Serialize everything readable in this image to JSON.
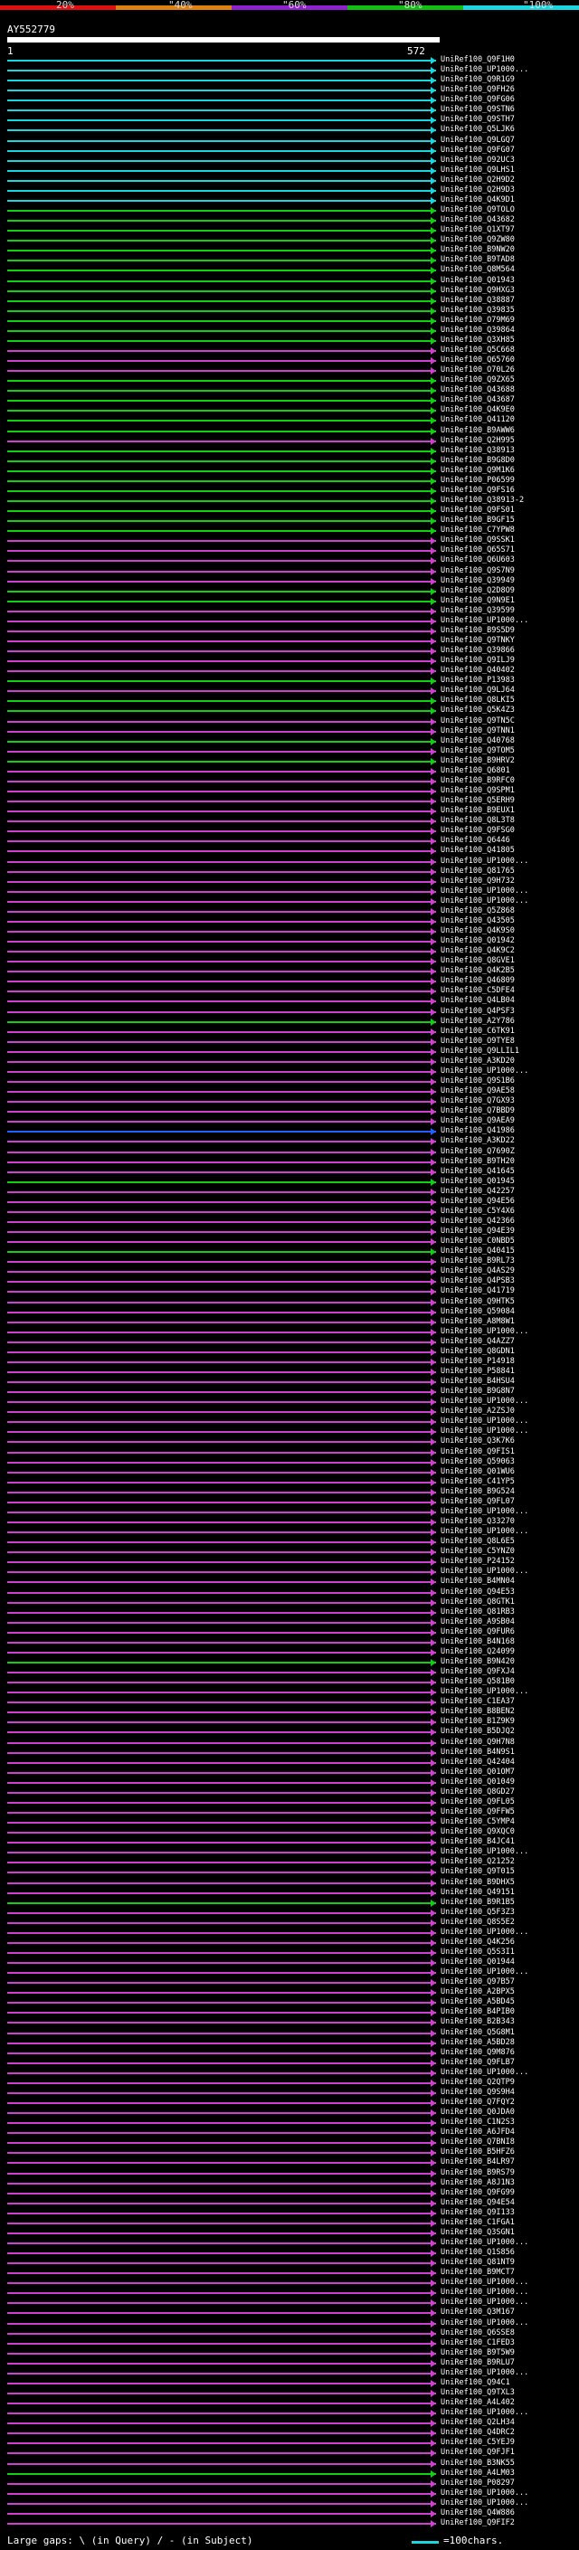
{
  "scale": {
    "ticks": [
      "20%",
      "\"40%",
      "\"60%",
      "\"80%",
      "\"100%"
    ],
    "colors": [
      "#e01010",
      "#e08010",
      "#9020d0",
      "#10c010",
      "#19d6e0"
    ]
  },
  "query": {
    "name": "AY552779",
    "start": "1",
    "end": "572"
  },
  "hit_colors": {
    "cyan": "#19d6e0",
    "green": "#10d010",
    "magenta": "#d040d0",
    "blue": "#2060ff"
  },
  "hits": [
    {
      "label": "UniRef100_Q9F1H0",
      "c": "cyan"
    },
    {
      "label": "UniRef100_UP1000...",
      "c": "cyan"
    },
    {
      "label": "UniRef100_Q9R1G9",
      "c": "cyan"
    },
    {
      "label": "UniRef100_Q9FH26",
      "c": "cyan"
    },
    {
      "label": "UniRef100_Q9FG06",
      "c": "cyan"
    },
    {
      "label": "UniRef100_Q9STN6",
      "c": "cyan"
    },
    {
      "label": "UniRef100_Q9STH7",
      "c": "cyan"
    },
    {
      "label": "UniRef100_Q5LJK6",
      "c": "cyan"
    },
    {
      "label": "UniRef100_Q9LGQ7",
      "c": "cyan"
    },
    {
      "label": "UniRef100_Q9FG07",
      "c": "cyan"
    },
    {
      "label": "UniRef100_O92UC3",
      "c": "cyan"
    },
    {
      "label": "UniRef100_Q9LHS1",
      "c": "cyan"
    },
    {
      "label": "UniRef100_Q2H9D2",
      "c": "cyan"
    },
    {
      "label": "UniRef100_Q2H9D3",
      "c": "cyan"
    },
    {
      "label": "UniRef100_Q4K9D1",
      "c": "cyan"
    },
    {
      "label": "UniRef100_Q9TOLO",
      "c": "green"
    },
    {
      "label": "UniRef100_Q43682",
      "c": "green"
    },
    {
      "label": "UniRef100_Q1XT97",
      "c": "green"
    },
    {
      "label": "UniRef100_Q9ZW80",
      "c": "green"
    },
    {
      "label": "UniRef100_B9NW20",
      "c": "green"
    },
    {
      "label": "UniRef100_B9TAD8",
      "c": "green"
    },
    {
      "label": "UniRef100_Q8M564",
      "c": "green"
    },
    {
      "label": "UniRef100_Q01943",
      "c": "green"
    },
    {
      "label": "UniRef100_Q9HXG3",
      "c": "green"
    },
    {
      "label": "UniRef100_Q38887",
      "c": "green"
    },
    {
      "label": "UniRef100_Q39835",
      "c": "green"
    },
    {
      "label": "UniRef100_O79M69",
      "c": "green"
    },
    {
      "label": "UniRef100_Q39864",
      "c": "green"
    },
    {
      "label": "UniRef100_Q3XH85",
      "c": "green"
    },
    {
      "label": "UniRef100_Q5C668",
      "c": "magenta"
    },
    {
      "label": "UniRef100_Q65760",
      "c": "magenta"
    },
    {
      "label": "UniRef100_O70L26",
      "c": "magenta"
    },
    {
      "label": "UniRef100_Q9ZX65",
      "c": "green"
    },
    {
      "label": "UniRef100_Q43688",
      "c": "green"
    },
    {
      "label": "UniRef100_Q43687",
      "c": "green"
    },
    {
      "label": "UniRef100_Q4K9E0",
      "c": "green"
    },
    {
      "label": "UniRef100_Q41120",
      "c": "green"
    },
    {
      "label": "UniRef100_B9AWW6",
      "c": "green"
    },
    {
      "label": "UniRef100_Q2H995",
      "c": "magenta"
    },
    {
      "label": "UniRef100_Q38913",
      "c": "green"
    },
    {
      "label": "UniRef100_B9G8D0",
      "c": "green"
    },
    {
      "label": "UniRef100_Q9M1K6",
      "c": "green"
    },
    {
      "label": "UniRef100_P06599",
      "c": "green"
    },
    {
      "label": "UniRef100_Q9FS16",
      "c": "green"
    },
    {
      "label": "UniRef100_Q38913-2",
      "c": "green"
    },
    {
      "label": "UniRef100_Q9FS01",
      "c": "green"
    },
    {
      "label": "UniRef100_B9GF15",
      "c": "green"
    },
    {
      "label": "UniRef100_C7YPW8",
      "c": "green"
    },
    {
      "label": "UniRef100_Q9SSK1",
      "c": "magenta"
    },
    {
      "label": "UniRef100_Q65S71",
      "c": "magenta"
    },
    {
      "label": "UniRef100_Q6U603",
      "c": "magenta"
    },
    {
      "label": "UniRef100_Q9S7N9",
      "c": "magenta"
    },
    {
      "label": "UniRef100_Q39949",
      "c": "magenta"
    },
    {
      "label": "UniRef100_Q2D8O9",
      "c": "green"
    },
    {
      "label": "UniRef100_Q9N9E1",
      "c": "green"
    },
    {
      "label": "UniRef100_Q39599",
      "c": "magenta"
    },
    {
      "label": "UniRef100_UP1000...",
      "c": "magenta"
    },
    {
      "label": "UniRef100_B9S5D9",
      "c": "magenta"
    },
    {
      "label": "UniRef100_Q9TNKY",
      "c": "magenta"
    },
    {
      "label": "UniRef100_Q39866",
      "c": "magenta"
    },
    {
      "label": "UniRef100_Q9ILJ9",
      "c": "magenta"
    },
    {
      "label": "UniRef100_Q40402",
      "c": "magenta"
    },
    {
      "label": "UniRef100_P13983",
      "c": "green"
    },
    {
      "label": "UniRef100_Q9LJ64",
      "c": "magenta"
    },
    {
      "label": "UniRef100_Q8LKI5",
      "c": "green"
    },
    {
      "label": "UniRef100_Q5K4Z3",
      "c": "green"
    },
    {
      "label": "UniRef100_Q9TN5C",
      "c": "magenta"
    },
    {
      "label": "UniRef100_Q9TNN1",
      "c": "magenta"
    },
    {
      "label": "UniRef100_Q40768",
      "c": "green"
    },
    {
      "label": "UniRef100_Q9TOM5",
      "c": "magenta"
    },
    {
      "label": "UniRef100_B9HRV2",
      "c": "green"
    },
    {
      "label": "UniRef100_Q6801",
      "c": "magenta"
    },
    {
      "label": "UniRef100_B9RFC0",
      "c": "magenta"
    },
    {
      "label": "UniRef100_Q9SPM1",
      "c": "magenta"
    },
    {
      "label": "UniRef100_Q5ERH9",
      "c": "magenta"
    },
    {
      "label": "UniRef100_B9EUX1",
      "c": "magenta"
    },
    {
      "label": "UniRef100_Q8L3T8",
      "c": "magenta"
    },
    {
      "label": "UniRef100_Q9FSG0",
      "c": "magenta"
    },
    {
      "label": "UniRef100_Q6446",
      "c": "magenta"
    },
    {
      "label": "UniRef100_Q41805",
      "c": "magenta"
    },
    {
      "label": "UniRef100_UP1000...",
      "c": "magenta"
    },
    {
      "label": "UniRef100_Q81765",
      "c": "magenta"
    },
    {
      "label": "UniRef100_Q9H732",
      "c": "magenta"
    },
    {
      "label": "UniRef100_UP1000...",
      "c": "magenta"
    },
    {
      "label": "UniRef100_UP1000...",
      "c": "magenta"
    },
    {
      "label": "UniRef100_Q5Z868",
      "c": "magenta"
    },
    {
      "label": "UniRef100_Q43505",
      "c": "magenta"
    },
    {
      "label": "UniRef100_Q4K9S0",
      "c": "magenta"
    },
    {
      "label": "UniRef100_Q01942",
      "c": "magenta"
    },
    {
      "label": "UniRef100_Q4K9C2",
      "c": "magenta"
    },
    {
      "label": "UniRef100_Q8GVE1",
      "c": "magenta"
    },
    {
      "label": "UniRef100_Q4K2B5",
      "c": "magenta"
    },
    {
      "label": "UniRef100_Q46809",
      "c": "magenta"
    },
    {
      "label": "UniRef100_C5DFE4",
      "c": "magenta"
    },
    {
      "label": "UniRef100_Q4LB04",
      "c": "magenta"
    },
    {
      "label": "UniRef100_Q4PSF3",
      "c": "magenta"
    },
    {
      "label": "UniRef100_A2Y786",
      "c": "green"
    },
    {
      "label": "UniRef100_C6TK91",
      "c": "magenta"
    },
    {
      "label": "UniRef100_O9TYE8",
      "c": "magenta"
    },
    {
      "label": "UniRef100_Q9LLIL1",
      "c": "magenta"
    },
    {
      "label": "UniRef100_A3KD20",
      "c": "magenta"
    },
    {
      "label": "UniRef100_UP1000...",
      "c": "magenta"
    },
    {
      "label": "UniRef100_Q9S1B6",
      "c": "magenta"
    },
    {
      "label": "UniRef100_Q9AE58",
      "c": "magenta"
    },
    {
      "label": "UniRef100_Q7GX93",
      "c": "magenta"
    },
    {
      "label": "UniRef100_Q7BBD9",
      "c": "magenta"
    },
    {
      "label": "UniRef100_Q9AEA9",
      "c": "magenta"
    },
    {
      "label": "UniRef100_Q41986",
      "c": "blue"
    },
    {
      "label": "UniRef100_A3KD22",
      "c": "magenta"
    },
    {
      "label": "UniRef100_Q7690Z",
      "c": "magenta"
    },
    {
      "label": "UniRef100_B9TH20",
      "c": "magenta"
    },
    {
      "label": "UniRef100_Q41645",
      "c": "magenta"
    },
    {
      "label": "UniRef100_Q01945",
      "c": "green"
    },
    {
      "label": "UniRef100_Q42257",
      "c": "magenta"
    },
    {
      "label": "UniRef100_Q94E56",
      "c": "magenta"
    },
    {
      "label": "UniRef100_C5Y4X6",
      "c": "magenta"
    },
    {
      "label": "UniRef100_Q42366",
      "c": "magenta"
    },
    {
      "label": "UniRef100_Q94E39",
      "c": "magenta"
    },
    {
      "label": "UniRef100_C0NBD5",
      "c": "magenta"
    },
    {
      "label": "UniRef100_Q40415",
      "c": "green"
    },
    {
      "label": "UniRef100_B9RL73",
      "c": "magenta"
    },
    {
      "label": "UniRef100_Q4AS29",
      "c": "magenta"
    },
    {
      "label": "UniRef100_Q4PSB3",
      "c": "magenta"
    },
    {
      "label": "UniRef100_Q41719",
      "c": "magenta"
    },
    {
      "label": "UniRef100_Q9HTK5",
      "c": "magenta"
    },
    {
      "label": "UniRef100_Q59084",
      "c": "magenta"
    },
    {
      "label": "UniRef100_A8M8W1",
      "c": "magenta"
    },
    {
      "label": "UniRef100_UP1000...",
      "c": "magenta"
    },
    {
      "label": "UniRef100_Q4AZZ7",
      "c": "magenta"
    },
    {
      "label": "UniRef100_Q8GDN1",
      "c": "magenta"
    },
    {
      "label": "UniRef100_P14918",
      "c": "magenta"
    },
    {
      "label": "UniRef100_P58841",
      "c": "magenta"
    },
    {
      "label": "UniRef100_B4HSU4",
      "c": "magenta"
    },
    {
      "label": "UniRef100_B9G8N7",
      "c": "magenta"
    },
    {
      "label": "UniRef100_UP1000...",
      "c": "magenta"
    },
    {
      "label": "UniRef100_A2ZSJ0",
      "c": "magenta"
    },
    {
      "label": "UniRef100_UP1000...",
      "c": "magenta"
    },
    {
      "label": "UniRef100_UP1000...",
      "c": "magenta"
    },
    {
      "label": "UniRef100_Q3K7K6",
      "c": "magenta"
    },
    {
      "label": "UniRef100_Q9FIS1",
      "c": "magenta"
    },
    {
      "label": "UniRef100_Q59063",
      "c": "magenta"
    },
    {
      "label": "UniRef100_Q01WU6",
      "c": "magenta"
    },
    {
      "label": "UniRef100_C41YP5",
      "c": "magenta"
    },
    {
      "label": "UniRef100_B9G524",
      "c": "magenta"
    },
    {
      "label": "UniRef100_Q9FL07",
      "c": "magenta"
    },
    {
      "label": "UniRef100_UP1000...",
      "c": "magenta"
    },
    {
      "label": "UniRef100_Q33270",
      "c": "magenta"
    },
    {
      "label": "UniRef100_UP1000...",
      "c": "magenta"
    },
    {
      "label": "UniRef100_Q8L6E5",
      "c": "magenta"
    },
    {
      "label": "UniRef100_C5YNZ0",
      "c": "magenta"
    },
    {
      "label": "UniRef100_P24152",
      "c": "magenta"
    },
    {
      "label": "UniRef100_UP1000...",
      "c": "magenta"
    },
    {
      "label": "UniRef100_B4MN04",
      "c": "magenta"
    },
    {
      "label": "UniRef100_Q94E53",
      "c": "magenta"
    },
    {
      "label": "UniRef100_Q8GTK1",
      "c": "magenta"
    },
    {
      "label": "UniRef100_Q81RB3",
      "c": "magenta"
    },
    {
      "label": "UniRef100_A9SB04",
      "c": "magenta"
    },
    {
      "label": "UniRef100_Q9FUR6",
      "c": "magenta"
    },
    {
      "label": "UniRef100_B4N168",
      "c": "magenta"
    },
    {
      "label": "UniRef100_Q24099",
      "c": "magenta"
    },
    {
      "label": "UniRef100_B9N420",
      "c": "green"
    },
    {
      "label": "UniRef100_Q9FXJ4",
      "c": "magenta"
    },
    {
      "label": "UniRef100_Q581B0",
      "c": "magenta"
    },
    {
      "label": "UniRef100_UP1000...",
      "c": "magenta"
    },
    {
      "label": "UniRef100_C1EA37",
      "c": "magenta"
    },
    {
      "label": "UniRef100_B8BEN2",
      "c": "magenta"
    },
    {
      "label": "UniRef100_B1Z9K9",
      "c": "magenta"
    },
    {
      "label": "UniRef100_B5DJQ2",
      "c": "magenta"
    },
    {
      "label": "UniRef100_Q9H7N8",
      "c": "magenta"
    },
    {
      "label": "UniRef100_B4N9S1",
      "c": "magenta"
    },
    {
      "label": "UniRef100_Q42404",
      "c": "magenta"
    },
    {
      "label": "UniRef100_Q01OM7",
      "c": "magenta"
    },
    {
      "label": "UniRef100_Q01049",
      "c": "magenta"
    },
    {
      "label": "UniRef100_Q8GD27",
      "c": "magenta"
    },
    {
      "label": "UniRef100_Q9FL05",
      "c": "magenta"
    },
    {
      "label": "UniRef100_Q9FFW5",
      "c": "magenta"
    },
    {
      "label": "UniRef100_C5YMP4",
      "c": "magenta"
    },
    {
      "label": "UniRef100_Q9XQC0",
      "c": "magenta"
    },
    {
      "label": "UniRef100_B4JC41",
      "c": "magenta"
    },
    {
      "label": "UniRef100_UP1000...",
      "c": "magenta"
    },
    {
      "label": "UniRef100_Q21252",
      "c": "magenta"
    },
    {
      "label": "UniRef100_Q9T015",
      "c": "magenta"
    },
    {
      "label": "UniRef100_B9DHX5",
      "c": "magenta"
    },
    {
      "label": "UniRef100_Q49151",
      "c": "magenta"
    },
    {
      "label": "UniRef100_B9R1B5",
      "c": "green"
    },
    {
      "label": "UniRef100_Q5F3Z3",
      "c": "magenta"
    },
    {
      "label": "UniRef100_Q8S5E2",
      "c": "magenta"
    },
    {
      "label": "UniRef100_UP1000...",
      "c": "magenta"
    },
    {
      "label": "UniRef100_Q4K256",
      "c": "magenta"
    },
    {
      "label": "UniRef100_Q5S3I1",
      "c": "magenta"
    },
    {
      "label": "UniRef100_Q01944",
      "c": "magenta"
    },
    {
      "label": "UniRef100_UP1000...",
      "c": "magenta"
    },
    {
      "label": "UniRef100_Q97B57",
      "c": "magenta"
    },
    {
      "label": "UniRef100_A2BPX5",
      "c": "magenta"
    },
    {
      "label": "UniRef100_A5BD45",
      "c": "magenta"
    },
    {
      "label": "UniRef100_B4PIB0",
      "c": "magenta"
    },
    {
      "label": "UniRef100_B2B343",
      "c": "magenta"
    },
    {
      "label": "UniRef100_Q5G8M1",
      "c": "magenta"
    },
    {
      "label": "UniRef100_A5BD28",
      "c": "magenta"
    },
    {
      "label": "UniRef100_Q9M876",
      "c": "magenta"
    },
    {
      "label": "UniRef100_Q9FLB7",
      "c": "magenta"
    },
    {
      "label": "UniRef100_UP1000...",
      "c": "magenta"
    },
    {
      "label": "UniRef100_Q2QTP9",
      "c": "magenta"
    },
    {
      "label": "UniRef100_Q9S9H4",
      "c": "magenta"
    },
    {
      "label": "UniRef100_Q7FQY2",
      "c": "magenta"
    },
    {
      "label": "UniRef100_Q0JDA0",
      "c": "magenta"
    },
    {
      "label": "UniRef100_C1N2S3",
      "c": "magenta"
    },
    {
      "label": "UniRef100_A6JFD4",
      "c": "magenta"
    },
    {
      "label": "UniRef100_Q7BNI8",
      "c": "magenta"
    },
    {
      "label": "UniRef100_B5HFZ6",
      "c": "magenta"
    },
    {
      "label": "UniRef100_B4LR97",
      "c": "magenta"
    },
    {
      "label": "UniRef100_B9RS79",
      "c": "magenta"
    },
    {
      "label": "UniRef100_A8J1N3",
      "c": "magenta"
    },
    {
      "label": "UniRef100_Q9FG99",
      "c": "magenta"
    },
    {
      "label": "UniRef100_Q94E54",
      "c": "magenta"
    },
    {
      "label": "UniRef100_Q9I133",
      "c": "magenta"
    },
    {
      "label": "UniRef100_C1FGA1",
      "c": "magenta"
    },
    {
      "label": "UniRef100_Q3SGN1",
      "c": "magenta"
    },
    {
      "label": "UniRef100_UP1000...",
      "c": "magenta"
    },
    {
      "label": "UniRef100_Q1S856",
      "c": "magenta"
    },
    {
      "label": "UniRef100_Q81NT9",
      "c": "magenta"
    },
    {
      "label": "UniRef100_B9MCT7",
      "c": "magenta"
    },
    {
      "label": "UniRef100_UP1000...",
      "c": "magenta"
    },
    {
      "label": "UniRef100_UP1000...",
      "c": "magenta"
    },
    {
      "label": "UniRef100_UP1000...",
      "c": "magenta"
    },
    {
      "label": "UniRef100_Q3M167",
      "c": "magenta"
    },
    {
      "label": "UniRef100_UP1000...",
      "c": "magenta"
    },
    {
      "label": "UniRef100_Q6SSE8",
      "c": "magenta"
    },
    {
      "label": "UniRef100_C1FED3",
      "c": "magenta"
    },
    {
      "label": "UniRef100_B9T5W9",
      "c": "magenta"
    },
    {
      "label": "UniRef100_B9RLU7",
      "c": "magenta"
    },
    {
      "label": "UniRef100_UP1000...",
      "c": "magenta"
    },
    {
      "label": "UniRef100_Q94C1",
      "c": "magenta"
    },
    {
      "label": "UniRef100_Q9TXL3",
      "c": "magenta"
    },
    {
      "label": "UniRef100_A4L402",
      "c": "magenta"
    },
    {
      "label": "UniRef100_UP1000...",
      "c": "magenta"
    },
    {
      "label": "UniRef100_Q2LH34",
      "c": "magenta"
    },
    {
      "label": "UniRef100_Q4DRC2",
      "c": "magenta"
    },
    {
      "label": "UniRef100_C5YEJ9",
      "c": "magenta"
    },
    {
      "label": "UniRef100_Q9FJF1",
      "c": "magenta"
    },
    {
      "label": "UniRef100_B3NK55",
      "c": "magenta"
    },
    {
      "label": "UniRef100_A4LM03",
      "c": "green"
    },
    {
      "label": "UniRef100_P08297",
      "c": "magenta"
    },
    {
      "label": "UniRef100_UP1000...",
      "c": "magenta"
    },
    {
      "label": "UniRef100_UP1000...",
      "c": "magenta"
    },
    {
      "label": "UniRef100_Q4W886",
      "c": "magenta"
    },
    {
      "label": "UniRef100_Q9FIF2",
      "c": "magenta"
    }
  ],
  "footer": {
    "left": "Large gaps: \\ (in Query) / - (in Subject)",
    "right": "=100chars."
  }
}
